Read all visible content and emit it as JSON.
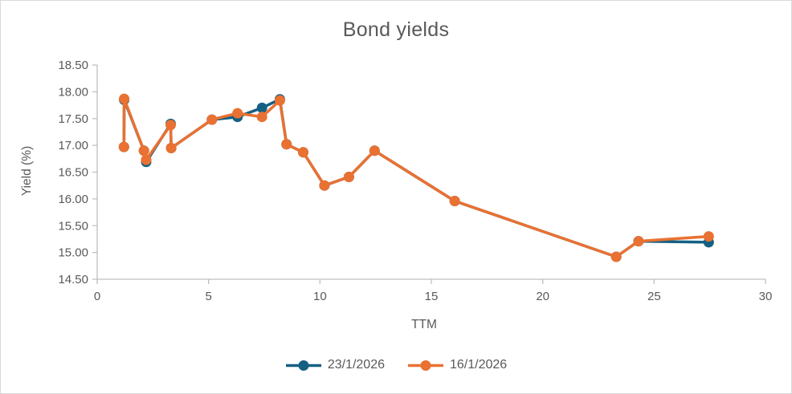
{
  "chart_data": {
    "type": "line",
    "title": "Bond yields",
    "xlabel": "TTM",
    "ylabel": "Yield (%)",
    "xlim": [
      0,
      30
    ],
    "ylim": [
      14.5,
      18.5
    ],
    "x_ticks": [
      "0",
      "5",
      "10",
      "15",
      "20",
      "25",
      "30"
    ],
    "y_ticks": [
      "14.50",
      "15.00",
      "15.50",
      "16.00",
      "16.50",
      "17.00",
      "17.50",
      "18.00",
      "18.50"
    ],
    "grid": false,
    "legend_position": "bottom",
    "marker": "circle",
    "axis_color": "#bfbfbf",
    "text_color": "#595959",
    "x": [
      1.2,
      1.21,
      2.1,
      2.2,
      3.3,
      3.32,
      5.15,
      6.3,
      7.4,
      8.2,
      8.5,
      9.25,
      10.2,
      11.3,
      12.45,
      16.05,
      23.3,
      24.3,
      27.45
    ],
    "series": [
      {
        "name": "23/1/2026",
        "color": "#156082",
        "values": [
          16.97,
          17.85,
          16.9,
          16.69,
          17.4,
          16.95,
          17.48,
          17.53,
          17.7,
          17.86,
          17.02,
          16.87,
          16.25,
          16.41,
          16.9,
          15.96,
          14.92,
          15.21,
          15.19
        ]
      },
      {
        "name": "16/1/2026",
        "color": "#E97132",
        "values": [
          16.97,
          17.87,
          16.9,
          16.73,
          17.38,
          16.95,
          17.48,
          17.6,
          17.53,
          17.84,
          17.02,
          16.87,
          16.25,
          16.41,
          16.9,
          15.96,
          14.92,
          15.21,
          15.3
        ]
      }
    ]
  }
}
